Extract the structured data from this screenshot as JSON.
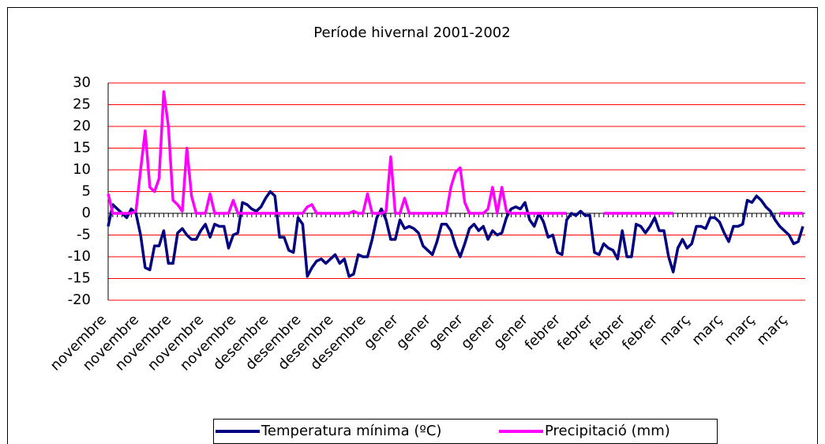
{
  "chart_data": {
    "type": "line",
    "title": "Període hivernal 2001-2002",
    "categories": [
      "novembre",
      null,
      null,
      null,
      null,
      null,
      null,
      "novembre",
      null,
      null,
      null,
      null,
      null,
      null,
      "novembre",
      null,
      null,
      null,
      null,
      null,
      null,
      "novembre",
      null,
      null,
      null,
      null,
      null,
      null,
      "novembre",
      null,
      null,
      null,
      null,
      null,
      null,
      "desembre",
      null,
      null,
      null,
      null,
      null,
      null,
      "desembre",
      null,
      null,
      null,
      null,
      null,
      null,
      "desembre",
      null,
      null,
      null,
      null,
      null,
      null,
      "desembre",
      null,
      null,
      null,
      null,
      null,
      null,
      "gener",
      null,
      null,
      null,
      null,
      null,
      null,
      "gener",
      null,
      null,
      null,
      null,
      null,
      null,
      "gener",
      null,
      null,
      null,
      null,
      null,
      null,
      "gener",
      null,
      null,
      null,
      null,
      null,
      null,
      "gener",
      null,
      null,
      null,
      null,
      null,
      null,
      "febrer",
      null,
      null,
      null,
      null,
      null,
      null,
      "febrer",
      null,
      null,
      null,
      null,
      null,
      null,
      "febrer",
      null,
      null,
      null,
      null,
      null,
      null,
      "febrer",
      null,
      null,
      null,
      null,
      null,
      null,
      "març",
      null,
      null,
      null,
      null,
      null,
      null,
      "març",
      null,
      null,
      null,
      null,
      null,
      null,
      "març",
      null,
      null,
      null,
      null,
      null,
      null,
      "març",
      null,
      null,
      null
    ],
    "series": [
      {
        "name": "Temperatura mínima (ºC)",
        "color": "#000080",
        "values": [
          -3,
          2,
          1,
          0,
          -1,
          1,
          0,
          -5,
          -12.5,
          -13,
          -7.5,
          -7.5,
          -4,
          -11.5,
          -11.5,
          -4.5,
          -3.5,
          -5,
          -6,
          -6,
          -4,
          -2.5,
          -5.5,
          -2.5,
          -3,
          -3,
          -8,
          -5,
          -4.5,
          2.5,
          2,
          1,
          0.5,
          1.5,
          3.5,
          5,
          4,
          -5.5,
          -5.5,
          -8.5,
          -9,
          -1,
          -2.5,
          -14.5,
          -12.5,
          -11,
          -10.5,
          -11.5,
          -10.5,
          -9.5,
          -11.5,
          -10.5,
          -14.5,
          -14,
          -9.5,
          -10,
          -10,
          -6,
          -1,
          1,
          -1.5,
          -6,
          -6,
          -1.5,
          -3.5,
          -3,
          -3.5,
          -4.5,
          -7.5,
          -8.5,
          -9.5,
          -6.5,
          -2.5,
          -2.5,
          -4,
          -7.5,
          -10,
          -7,
          -3.5,
          -2.5,
          -4,
          -3,
          -6,
          -4,
          -5,
          -4.5,
          -1,
          1,
          1.5,
          1,
          2.5,
          -1.5,
          -3,
          0,
          -2,
          -5.5,
          -5,
          -9,
          -9.5,
          -1.5,
          0,
          -0.5,
          0.5,
          -0.5,
          -0.5,
          -9,
          -9.5,
          -7,
          -8,
          -8.5,
          -10.5,
          -4,
          -10,
          -10,
          -2.5,
          -3,
          -4.5,
          -3,
          -1,
          -4,
          -4,
          -10,
          -13.5,
          -8,
          -6,
          -8,
          -7,
          -3,
          -3,
          -3.5,
          -1,
          -1,
          -2,
          -4.5,
          -6.5,
          -3,
          -3,
          -2.5,
          3,
          2.5,
          4,
          3,
          1.5,
          0.5,
          -1.5,
          -3,
          -4,
          -5,
          -7,
          -6.5,
          -3
        ]
      },
      {
        "name": "Precipitació (mm)",
        "color": "#ff00ff",
        "values": [
          4.5,
          0,
          0,
          0,
          0,
          0,
          0.5,
          10,
          19,
          6,
          5,
          8,
          28,
          20,
          3,
          2,
          0.5,
          15,
          4,
          0,
          0,
          0,
          4.5,
          0,
          0,
          0,
          0,
          3,
          0,
          0,
          0,
          0,
          0,
          0,
          0,
          0,
          0,
          0,
          0,
          0,
          0,
          0,
          0,
          1.5,
          2,
          0,
          0,
          0,
          0,
          0,
          0,
          0,
          0,
          0.5,
          0,
          0,
          4.5,
          0,
          0,
          0,
          0.5,
          13,
          0,
          0,
          3.5,
          0,
          0,
          0,
          0,
          0,
          0,
          0,
          0,
          0,
          6,
          9.5,
          10.5,
          2.5,
          0,
          0,
          0,
          0,
          1,
          6,
          0,
          6,
          0.5,
          0,
          0,
          0,
          0,
          0,
          0,
          0,
          0,
          0,
          0,
          0,
          0,
          0,
          null,
          null,
          null,
          null,
          null,
          null,
          null,
          0,
          0,
          0,
          0,
          0,
          0,
          0,
          0,
          0,
          0,
          0,
          0,
          0,
          0,
          0,
          0,
          null,
          null,
          null,
          null,
          null,
          null,
          null,
          null,
          null,
          null,
          null,
          null,
          null,
          null,
          null,
          null,
          null,
          null,
          null,
          null,
          null,
          null,
          0,
          0,
          0,
          0,
          0,
          0
        ]
      }
    ],
    "ylim": [
      -20,
      30
    ],
    "yticks": [
      -20,
      -15,
      -10,
      -5,
      0,
      5,
      10,
      15,
      20,
      25,
      30
    ],
    "grid": true,
    "legend": "bottom"
  }
}
